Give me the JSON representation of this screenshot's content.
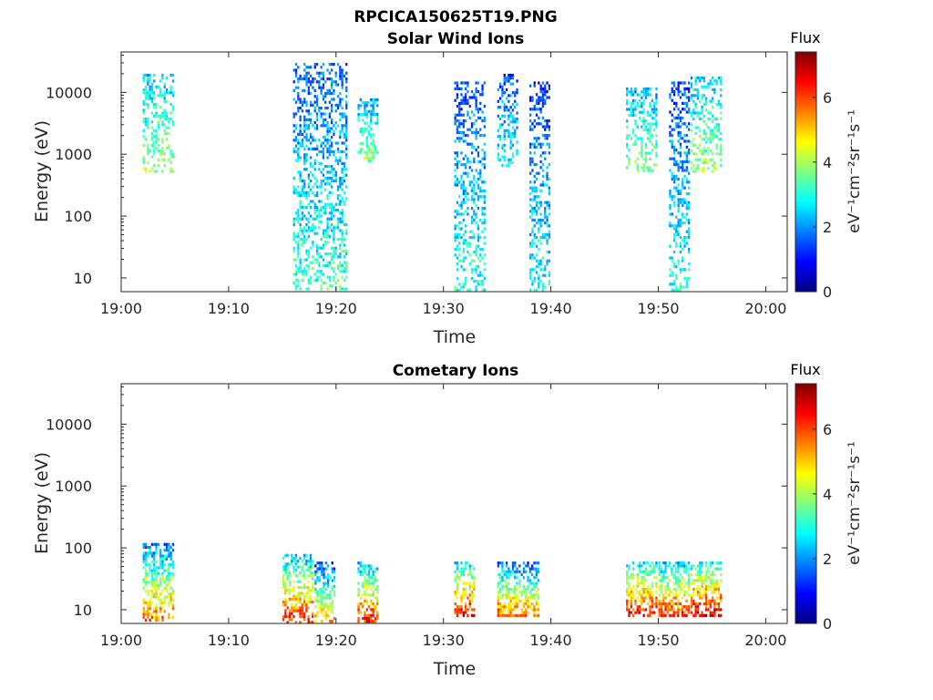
{
  "figure_title": "RPCICA150625T19.PNG",
  "colorbar_title": "Flux",
  "colorbar_unit": "eV⁻¹cm⁻²sr⁻¹s⁻¹",
  "colormap": [
    "#00007f",
    "#0000ff",
    "#007fff",
    "#00ffff",
    "#7fff7f",
    "#ffff00",
    "#ff7f00",
    "#ff0000",
    "#7f0000"
  ],
  "chart_data": [
    {
      "type": "heatmap",
      "title": "Solar Wind Ions",
      "xlabel": "Time",
      "ylabel": "Energy (eV)",
      "xticks": [
        "19:00",
        "19:10",
        "19:20",
        "19:30",
        "19:40",
        "19:50",
        "20:00"
      ],
      "xlim_minutes_after_1900": [
        0,
        62
      ],
      "yscale": "log",
      "yticks": [
        10,
        100,
        1000,
        10000
      ],
      "ytick_labels": [
        "10",
        "100",
        "1000",
        "10000"
      ],
      "ylim": [
        6,
        45000
      ],
      "colorbar_ticks": [
        0,
        2,
        4,
        6
      ],
      "colorbar_range": [
        0,
        7.4
      ],
      "grid": false,
      "activity_bursts": [
        {
          "time_range": [
            "19:02",
            "19:05"
          ],
          "energy_range": [
            500,
            20000
          ],
          "flux_level": 2.4
        },
        {
          "time_range": [
            "19:16",
            "19:21"
          ],
          "energy_range": [
            6,
            30000
          ],
          "flux_level": 1.6
        },
        {
          "time_range": [
            "19:22",
            "19:24"
          ],
          "energy_range": [
            700,
            8000
          ],
          "flux_level": 2.2
        },
        {
          "time_range": [
            "19:31",
            "19:34"
          ],
          "energy_range": [
            6,
            15000
          ],
          "flux_level": 1.5
        },
        {
          "time_range": [
            "19:35",
            "19:37"
          ],
          "energy_range": [
            600,
            20000
          ],
          "flux_level": 1.4
        },
        {
          "time_range": [
            "19:38",
            "19:40"
          ],
          "energy_range": [
            6,
            15000
          ],
          "flux_level": 1.3
        },
        {
          "time_range": [
            "19:47",
            "19:50"
          ],
          "energy_range": [
            500,
            12000
          ],
          "flux_level": 2.2
        },
        {
          "time_range": [
            "19:51",
            "19:53"
          ],
          "energy_range": [
            6,
            15000
          ],
          "flux_level": 1.4
        },
        {
          "time_range": [
            "19:53",
            "19:56"
          ],
          "energy_range": [
            500,
            18000
          ],
          "flux_level": 2.4
        }
      ]
    },
    {
      "type": "heatmap",
      "title": "Cometary Ions",
      "xlabel": "Time",
      "ylabel": "Energy (eV)",
      "xticks": [
        "19:00",
        "19:10",
        "19:20",
        "19:30",
        "19:40",
        "19:50",
        "20:00"
      ],
      "xlim_minutes_after_1900": [
        0,
        62
      ],
      "yscale": "log",
      "yticks": [
        10,
        100,
        1000,
        10000
      ],
      "ytick_labels": [
        "10",
        "100",
        "1000",
        "10000"
      ],
      "ylim": [
        6,
        45000
      ],
      "colorbar_ticks": [
        0,
        2,
        4,
        6
      ],
      "colorbar_range": [
        0,
        7.4
      ],
      "grid": false,
      "activity_bursts": [
        {
          "time_range": [
            "19:02",
            "19:05"
          ],
          "energy_range": [
            6,
            120
          ],
          "flux_level": 6.0
        },
        {
          "time_range": [
            "19:15",
            "19:18"
          ],
          "energy_range": [
            6,
            80
          ],
          "flux_level": 6.5
        },
        {
          "time_range": [
            "19:18",
            "19:20"
          ],
          "energy_range": [
            6,
            60
          ],
          "flux_level": 5.5
        },
        {
          "time_range": [
            "19:22",
            "19:24"
          ],
          "energy_range": [
            6,
            60
          ],
          "flux_level": 6.5
        },
        {
          "time_range": [
            "19:31",
            "19:33"
          ],
          "energy_range": [
            8,
            60
          ],
          "flux_level": 6.8
        },
        {
          "time_range": [
            "19:35",
            "19:37"
          ],
          "energy_range": [
            8,
            60
          ],
          "flux_level": 6.0
        },
        {
          "time_range": [
            "19:37",
            "19:39"
          ],
          "energy_range": [
            8,
            60
          ],
          "flux_level": 5.8
        },
        {
          "time_range": [
            "19:47",
            "19:50"
          ],
          "energy_range": [
            8,
            60
          ],
          "flux_level": 6.8
        },
        {
          "time_range": [
            "19:50",
            "19:53"
          ],
          "energy_range": [
            8,
            60
          ],
          "flux_level": 6.5
        },
        {
          "time_range": [
            "19:53",
            "19:56"
          ],
          "energy_range": [
            8,
            60
          ],
          "flux_level": 7.0
        }
      ]
    }
  ]
}
